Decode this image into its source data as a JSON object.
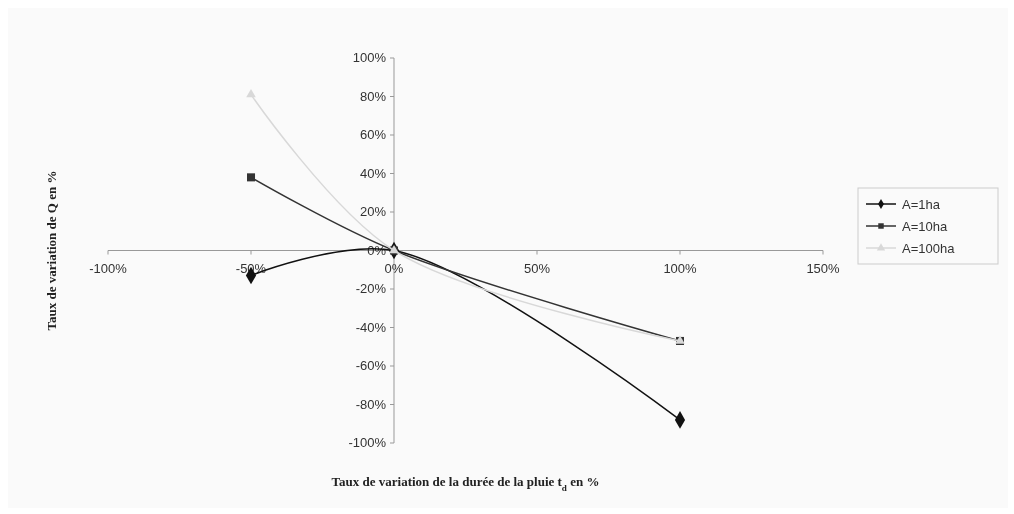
{
  "chart_data": {
    "type": "line",
    "xlabel": "Taux de variation de la durée de la pluie t$_{d}$ en %",
    "ylabel": "Taux de variation de Q en %",
    "x": [
      -50,
      0,
      100
    ],
    "series": [
      {
        "name": "A=1ha",
        "color": "#111111",
        "values": [
          -13,
          0,
          -88
        ],
        "marker": "diamond"
      },
      {
        "name": "A=10ha",
        "color": "#333333",
        "values": [
          38,
          0,
          -47
        ],
        "marker": "square"
      },
      {
        "name": "A=100ha",
        "color": "#d8d8d8",
        "values": [
          81,
          0,
          -47
        ],
        "marker": "triangle"
      }
    ],
    "xlim": [
      -100,
      150
    ],
    "xticks": [
      {
        "value": -100,
        "label": "-100%"
      },
      {
        "value": -50,
        "label": "-50%"
      },
      {
        "value": 0,
        "label": "0%"
      },
      {
        "value": 50,
        "label": "50%"
      },
      {
        "value": 100,
        "label": "100%"
      },
      {
        "value": 150,
        "label": "150%"
      }
    ],
    "ylim": [
      -100,
      100
    ],
    "yticks": [
      {
        "value": -100,
        "label": "-100%"
      },
      {
        "value": -80,
        "label": "-80%"
      },
      {
        "value": -60,
        "label": "-60%"
      },
      {
        "value": -40,
        "label": "-40%"
      },
      {
        "value": -20,
        "label": "-20%"
      },
      {
        "value": 0,
        "label": "0%"
      },
      {
        "value": 20,
        "label": "20%"
      },
      {
        "value": 40,
        "label": "40%"
      },
      {
        "value": 60,
        "label": "60%"
      },
      {
        "value": 80,
        "label": "80%"
      },
      {
        "value": 100,
        "label": "100%"
      }
    ],
    "grid": false,
    "legend": "right",
    "line_style": "solid"
  }
}
